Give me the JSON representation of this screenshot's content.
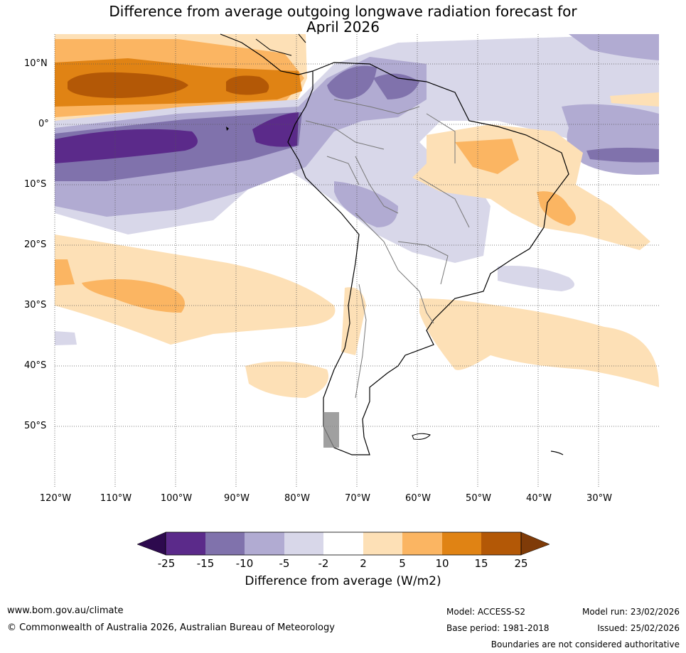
{
  "title": {
    "line1": "Difference from average outgoing longwave radiation forecast for",
    "line2": "April 2026"
  },
  "lat_labels": [
    "10°N",
    "0°",
    "10°S",
    "20°S",
    "30°S",
    "40°S",
    "50°S"
  ],
  "lon_labels": [
    "120°W",
    "110°W",
    "100°W",
    "90°W",
    "80°W",
    "70°W",
    "60°W",
    "50°W",
    "40°W",
    "30°W"
  ],
  "colorbar": {
    "ticks": [
      "-25",
      "-15",
      "-10",
      "-5",
      "-2",
      "2",
      "5",
      "10",
      "15",
      "25"
    ],
    "colors": {
      "below_min": "#2d0a4e",
      "bin_m25_m15": "#5b2a8a",
      "bin_m15_m10": "#8072ac",
      "bin_m10_m5": "#b1abd2",
      "bin_m5_m2": "#d8d7e9",
      "bin_m2_2": "#ffffff",
      "bin_2_5": "#fde0b6",
      "bin_5_10": "#fbb562",
      "bin_10_15": "#e08314",
      "bin_15_25": "#b35806",
      "above_max": "#7f3b08"
    },
    "title": "Difference from average (W/m2)"
  },
  "footer": {
    "website": "www.bom.gov.au/climate",
    "copyright": "© Commonwealth of Australia 2026, Australian Bureau of Meteorology",
    "model": "Model: ACCESS-S2",
    "base_period": "Base period: 1981-2018",
    "model_run": "Model run: 23/02/2026",
    "issued": "Issued: 25/02/2026",
    "disclaimer": "Boundaries are not considered authoritative"
  }
}
